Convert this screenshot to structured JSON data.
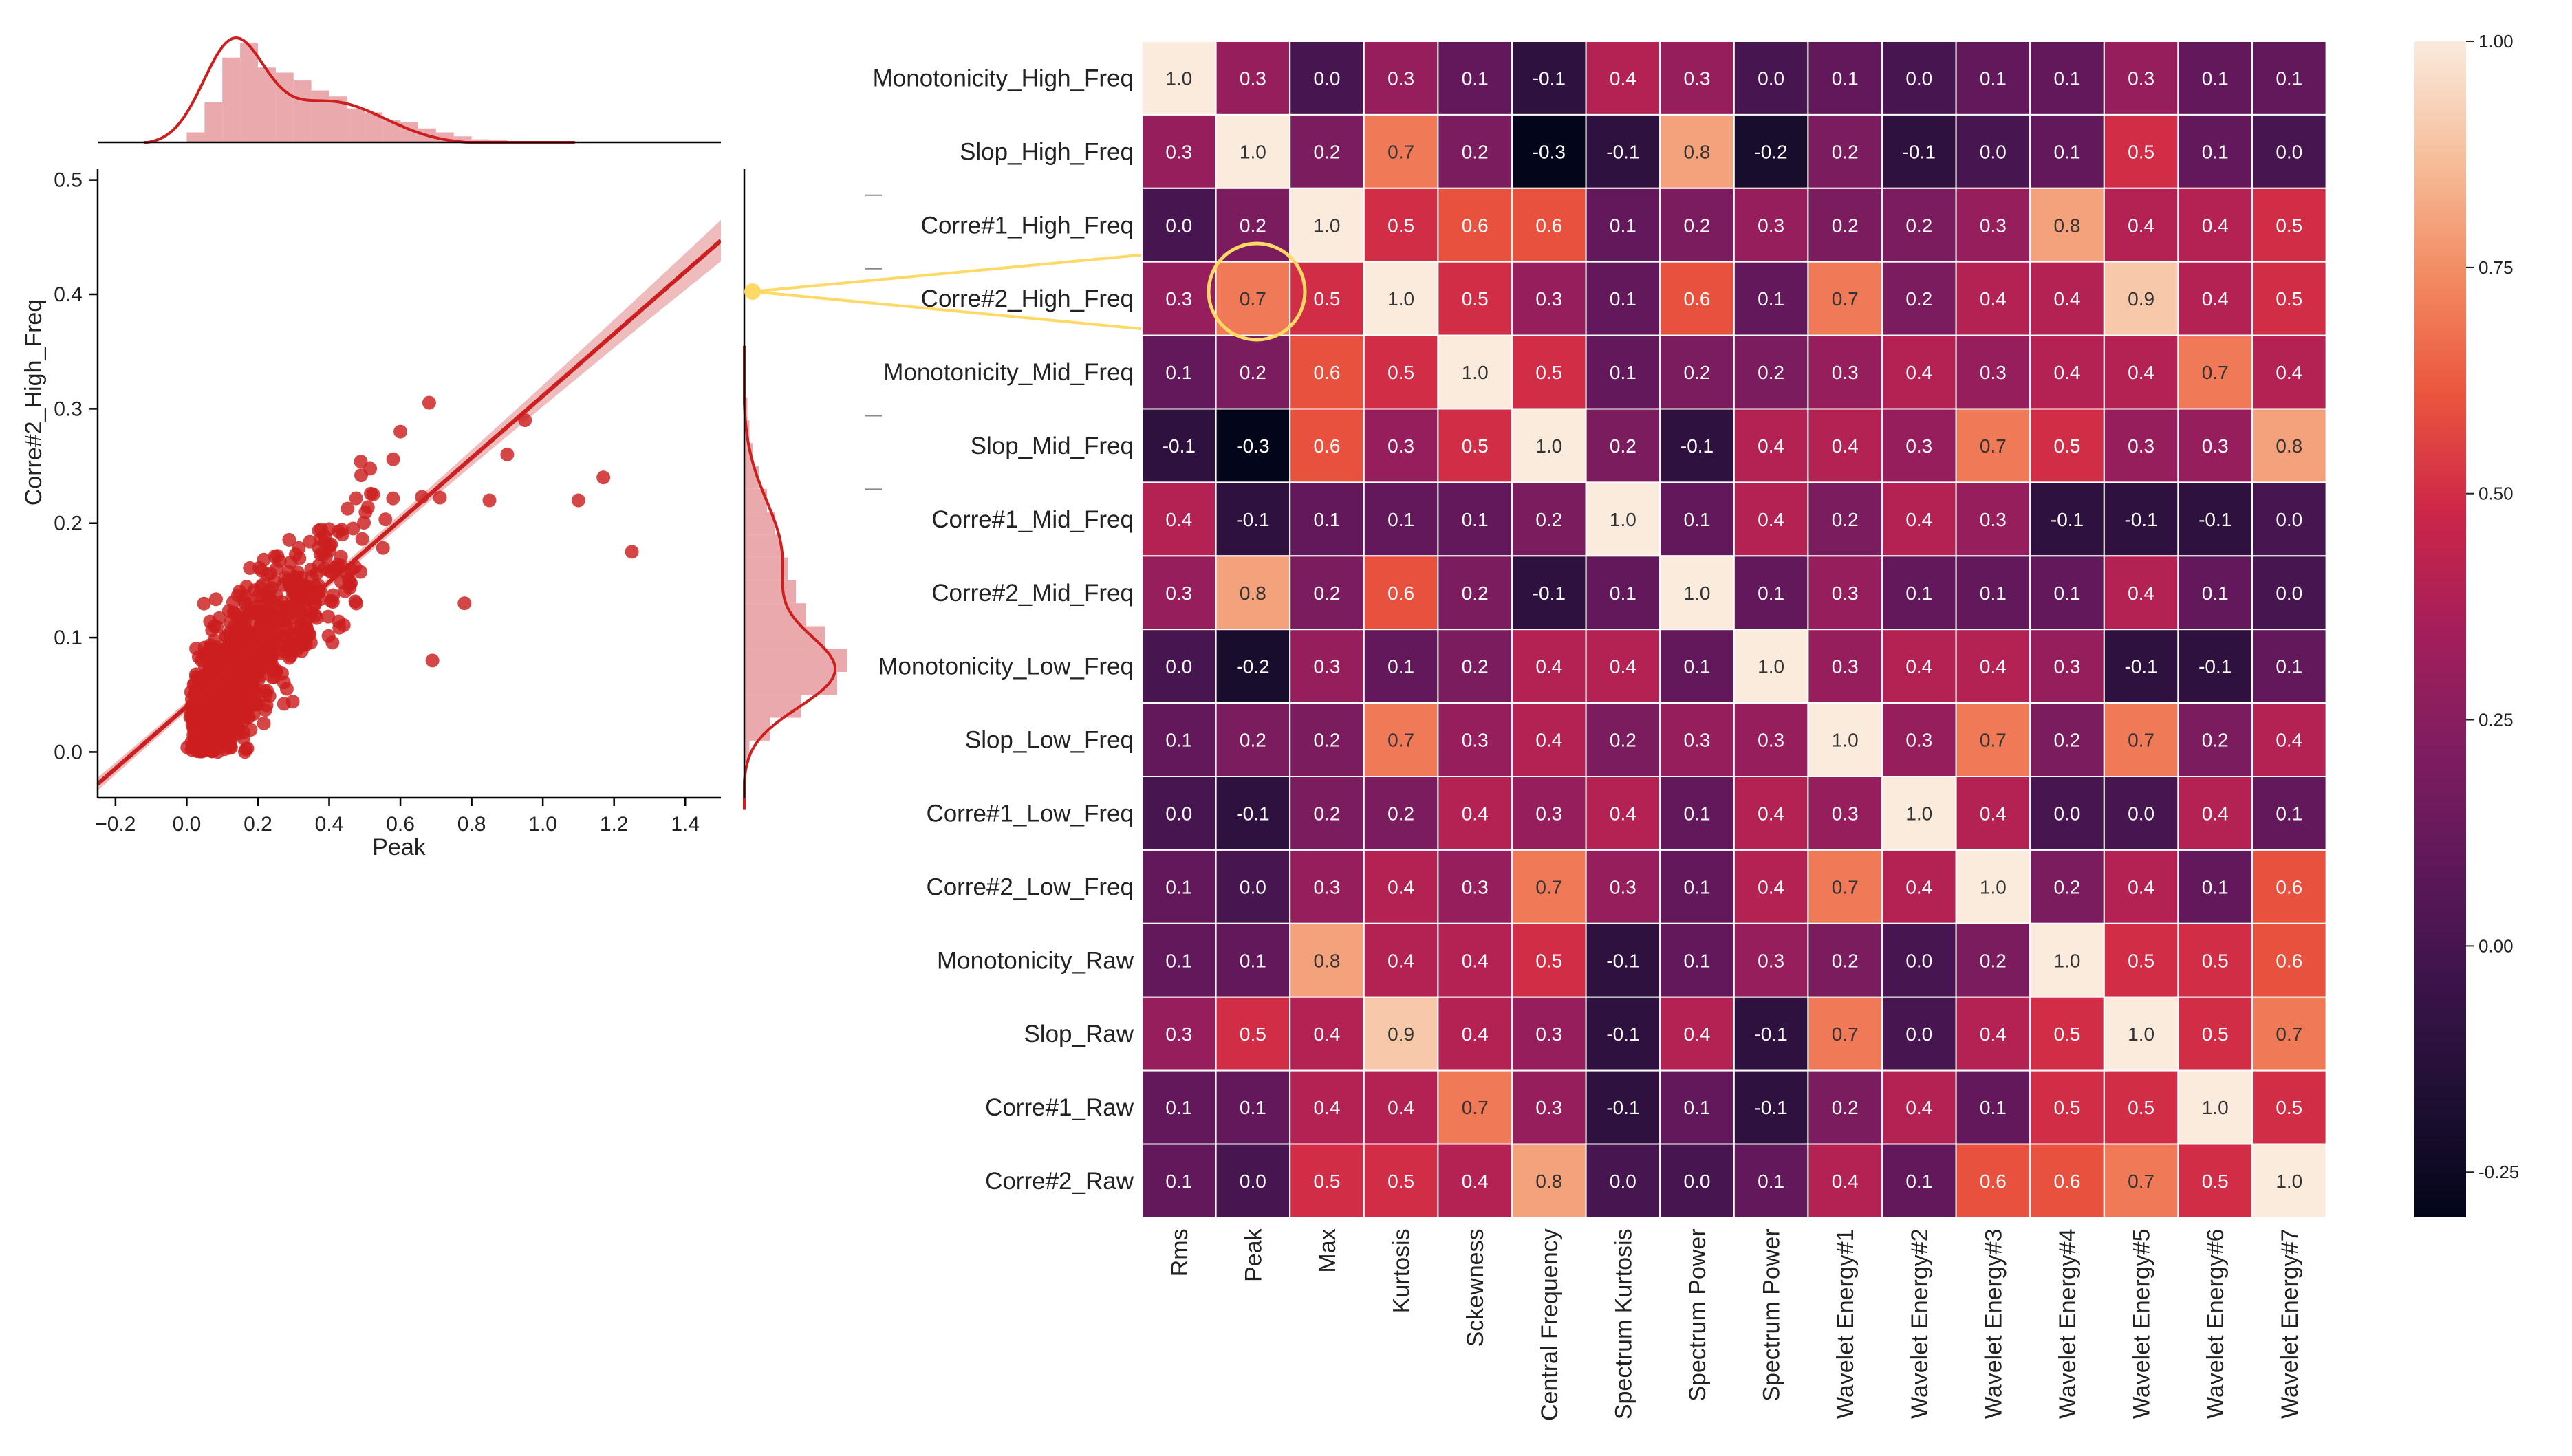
{
  "chart_data": [
    {
      "type": "scatter",
      "xlabel": "Peak",
      "ylabel": "Corre#2_High_Freq",
      "xlim": [
        -0.25,
        1.5
      ],
      "ylim": [
        -0.04,
        0.51
      ],
      "x_ticks": [
        -0.2,
        0.0,
        0.2,
        0.4,
        0.6,
        0.8,
        1.0,
        1.2,
        1.4
      ],
      "x_tick_labels": [
        "−0.2",
        "0.0",
        "0.2",
        "0.4",
        "0.6",
        "0.8",
        "1.0",
        "1.2",
        "1.4"
      ],
      "y_ticks": [
        0.0,
        0.1,
        0.2,
        0.3,
        0.4,
        0.5
      ],
      "y_tick_labels": [
        "0.0",
        "0.1",
        "0.2",
        "0.3",
        "0.4",
        "0.5"
      ],
      "regression_line": {
        "x": [
          -0.25,
          1.5
        ],
        "y": [
          -0.028,
          0.447
        ]
      },
      "marginal_x": "histogram + KDE of Peak",
      "marginal_y": "histogram + KDE of Corre#2_High_Freq",
      "color": "#cc1f1f",
      "band_color": "#e8a0a3",
      "highlight_link": {
        "row": "Corre#2_High_Freq",
        "col": "Peak",
        "value": 0.7,
        "color": "#ffd966"
      }
    },
    {
      "type": "heatmap",
      "rows": [
        "Monotonicity_High_Freq",
        "Slop_High_Freq",
        "Corre#1_High_Freq",
        "Corre#2_High_Freq",
        "Monotonicity_Mid_Freq",
        "Slop_Mid_Freq",
        "Corre#1_Mid_Freq",
        "Corre#2_Mid_Freq",
        "Monotonicity_Low_Freq",
        "Slop_Low_Freq",
        "Corre#1_Low_Freq",
        "Corre#2_Low_Freq",
        "Monotonicity_Raw",
        "Slop_Raw",
        "Corre#1_Raw",
        "Corre#2_Raw"
      ],
      "columns": [
        "Rms",
        "Peak",
        "Max",
        "Kurtosis",
        "Sckewness",
        "Central Frequency",
        "Spectrum Kurtosis",
        "Spectrum Power",
        "Spectrum Power",
        "Wavelet Energy#1",
        "Wavelet Energy#2",
        "Wavelet Energy#3",
        "Wavelet Energy#4",
        "Wavelet Energy#5",
        "Wavelet Energy#6",
        "Wavelet Energy#7"
      ],
      "values": [
        [
          1.0,
          0.3,
          -0.0,
          0.3,
          0.1,
          -0.1,
          0.4,
          0.3,
          0.0,
          0.1,
          0.0,
          0.1,
          0.1,
          0.3,
          0.1,
          0.1
        ],
        [
          0.3,
          1.0,
          0.2,
          0.7,
          0.2,
          -0.3,
          -0.1,
          0.8,
          -0.2,
          0.2,
          -0.1,
          -0.0,
          0.1,
          0.5,
          0.1,
          0.0
        ],
        [
          -0.0,
          0.2,
          1.0,
          0.5,
          0.6,
          0.6,
          0.1,
          0.2,
          0.3,
          0.2,
          0.2,
          0.3,
          0.8,
          0.4,
          0.4,
          0.5
        ],
        [
          0.3,
          0.7,
          0.5,
          1.0,
          0.5,
          0.3,
          0.1,
          0.6,
          0.1,
          0.7,
          0.2,
          0.4,
          0.4,
          0.9,
          0.4,
          0.5
        ],
        [
          0.1,
          0.2,
          0.6,
          0.5,
          1.0,
          0.5,
          0.1,
          0.2,
          0.2,
          0.3,
          0.4,
          0.3,
          0.4,
          0.4,
          0.7,
          0.4
        ],
        [
          -0.1,
          -0.3,
          0.6,
          0.3,
          0.5,
          1.0,
          0.2,
          -0.1,
          0.4,
          0.4,
          0.3,
          0.7,
          0.5,
          0.3,
          0.3,
          0.8
        ],
        [
          0.4,
          -0.1,
          0.1,
          0.1,
          0.1,
          0.2,
          1.0,
          0.1,
          0.4,
          0.2,
          0.4,
          0.3,
          -0.1,
          -0.1,
          -0.1,
          -0.0
        ],
        [
          0.3,
          0.8,
          0.2,
          0.6,
          0.2,
          -0.1,
          0.1,
          1.0,
          0.1,
          0.3,
          0.1,
          0.1,
          0.1,
          0.4,
          0.1,
          0.0
        ],
        [
          0.0,
          -0.2,
          0.3,
          0.1,
          0.2,
          0.4,
          0.4,
          0.1,
          1.0,
          0.3,
          0.4,
          0.4,
          0.3,
          -0.1,
          -0.1,
          0.1
        ],
        [
          0.1,
          0.2,
          0.2,
          0.7,
          0.3,
          0.4,
          0.2,
          0.3,
          0.3,
          1.0,
          0.3,
          0.7,
          0.2,
          0.7,
          0.2,
          0.4
        ],
        [
          0.0,
          -0.1,
          0.2,
          0.2,
          0.4,
          0.3,
          0.4,
          0.1,
          0.4,
          0.3,
          1.0,
          0.4,
          -0.0,
          0.0,
          0.4,
          0.1
        ],
        [
          0.1,
          -0.0,
          0.3,
          0.4,
          0.3,
          0.7,
          0.3,
          0.1,
          0.4,
          0.7,
          0.4,
          1.0,
          0.2,
          0.4,
          0.1,
          0.6
        ],
        [
          0.1,
          0.1,
          0.8,
          0.4,
          0.4,
          0.5,
          -0.1,
          0.1,
          0.3,
          0.2,
          -0.0,
          0.2,
          1.0,
          0.5,
          0.5,
          0.6
        ],
        [
          0.3,
          0.5,
          0.4,
          0.9,
          0.4,
          0.3,
          -0.1,
          0.4,
          -0.1,
          0.7,
          0.0,
          0.4,
          0.5,
          1.0,
          0.5,
          0.7
        ],
        [
          0.1,
          0.1,
          0.4,
          0.4,
          0.7,
          0.3,
          -0.1,
          0.1,
          -0.1,
          0.2,
          0.4,
          0.1,
          0.5,
          0.5,
          1.0,
          0.5
        ],
        [
          0.1,
          0.0,
          0.5,
          0.5,
          0.4,
          0.8,
          -0.0,
          0.0,
          0.1,
          0.4,
          0.1,
          0.6,
          0.6,
          0.7,
          0.5,
          1.0
        ]
      ],
      "colorbar": {
        "range": [
          -0.3,
          1.0
        ],
        "ticks": [
          -0.25,
          0.0,
          0.25,
          0.5,
          0.75,
          1.0
        ],
        "tick_labels": [
          "-0.25",
          "0.00",
          "0.25",
          "0.50",
          "0.75",
          "1.00"
        ],
        "colormap": "rocket"
      }
    }
  ]
}
